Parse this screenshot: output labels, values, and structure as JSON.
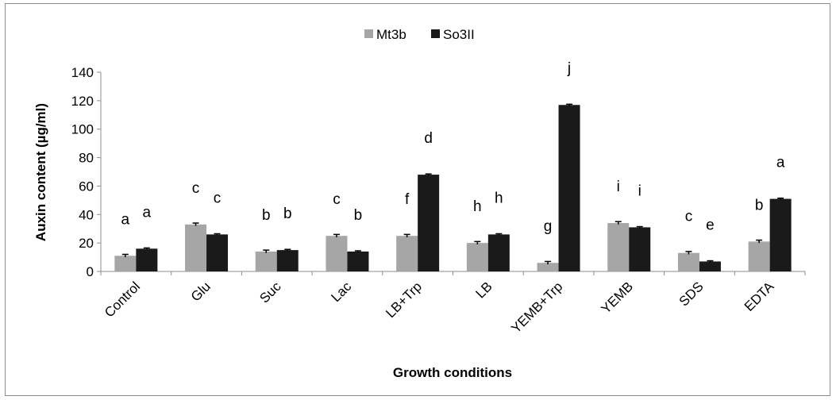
{
  "chart_data": {
    "type": "bar",
    "categories": [
      "Control",
      "Glu",
      "Suc",
      "Lac",
      "LB+Trp",
      "LB",
      "YEMB+Trp",
      "YEMB",
      "SDS",
      "EDTA"
    ],
    "series": [
      {
        "name": "Mt3b",
        "color": "#a6a6a6",
        "values": [
          11,
          33,
          14,
          25,
          25,
          20,
          6,
          34,
          13,
          21
        ],
        "errors": [
          1,
          1,
          1,
          1,
          1,
          1,
          1,
          1,
          1,
          1
        ],
        "letters": [
          "a",
          "c",
          "b",
          "c",
          "f",
          "h",
          "g",
          "i",
          "c",
          "b"
        ]
      },
      {
        "name": "So3II",
        "color": "#1a1a1a",
        "values": [
          16,
          26,
          15,
          14,
          68,
          26,
          117,
          31,
          7,
          51
        ],
        "errors": [
          0.5,
          0.5,
          0.5,
          0.5,
          0.5,
          0.5,
          0.5,
          0.5,
          0.5,
          0.5
        ],
        "letters": [
          "a",
          "c",
          "b",
          "b",
          "d",
          "h",
          "j",
          "i",
          "e",
          "a"
        ]
      }
    ],
    "xlabel": "Growth conditions",
    "ylabel": "Auxin content (µg/ml)",
    "ylim": [
      0,
      140
    ],
    "yticks": [
      "0",
      "20",
      "40",
      "60",
      "80",
      "100",
      "120",
      "140"
    ],
    "legend_position": "top-center",
    "grid": false
  }
}
